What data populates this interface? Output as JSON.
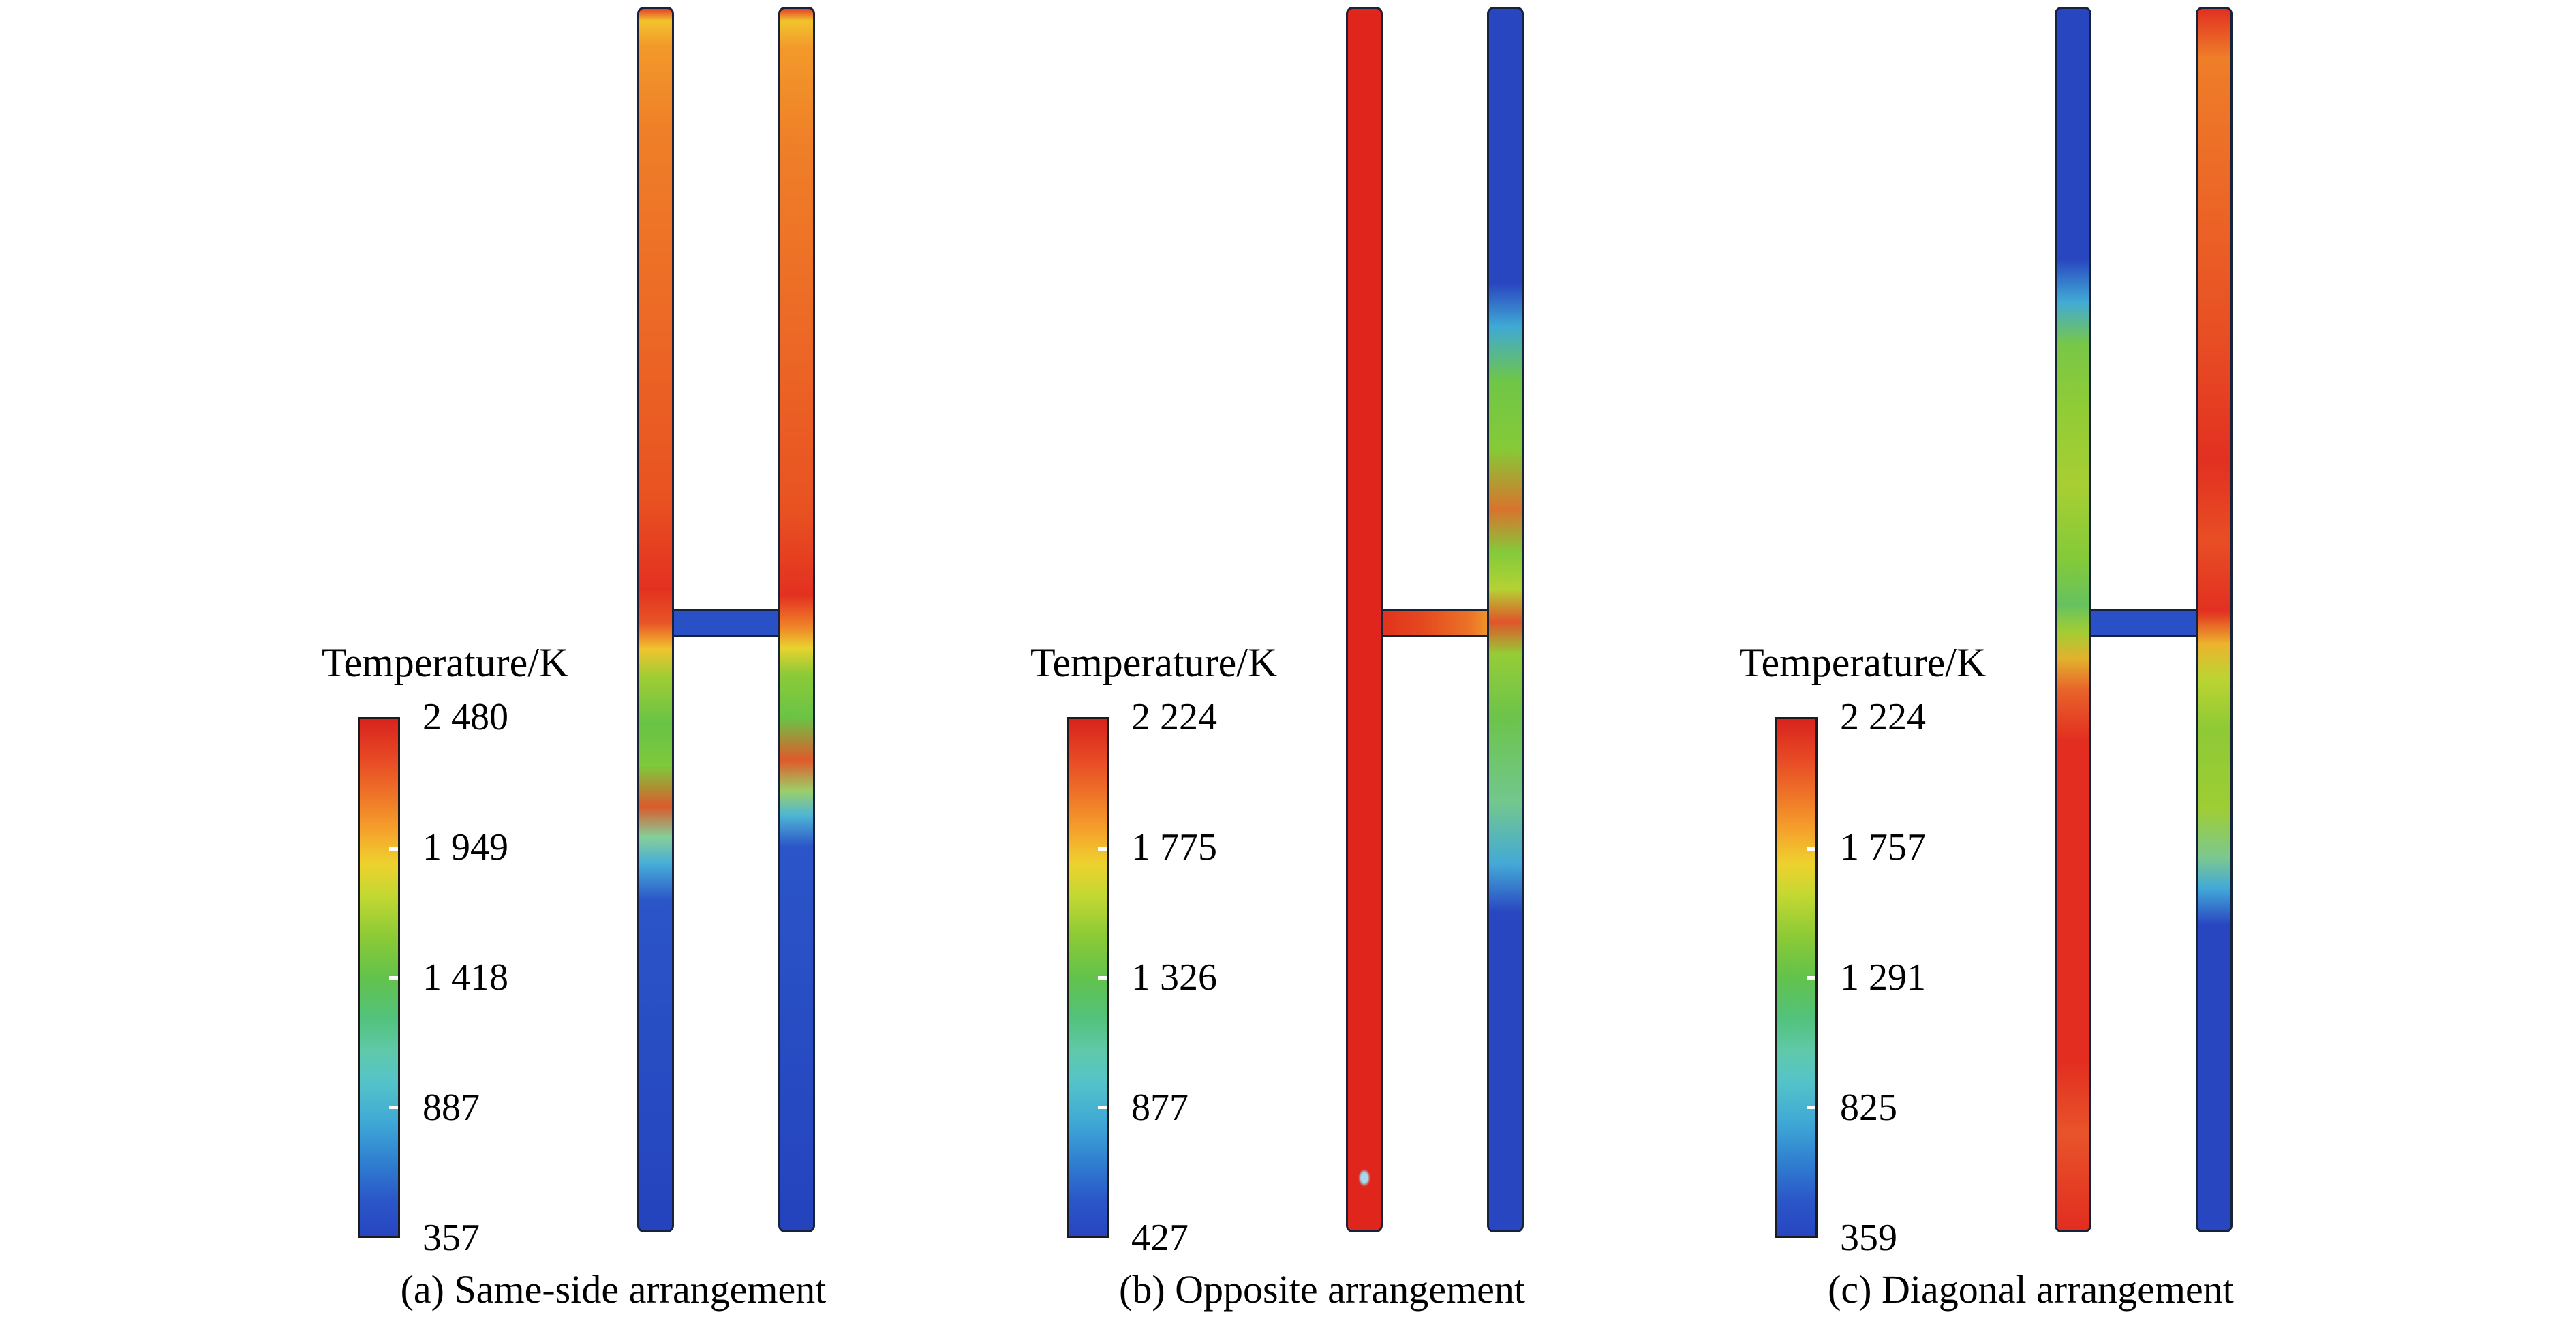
{
  "figure": {
    "panels": [
      {
        "caption": "(a) Same-side arrangement",
        "legend_title": "Temperature/K",
        "ticks": [
          "2 480",
          "1 949",
          "1 418",
          "887",
          "357"
        ]
      },
      {
        "caption": "(b) Opposite arrangement",
        "legend_title": "Temperature/K",
        "ticks": [
          "2 224",
          "1 775",
          "1 326",
          "877",
          "427"
        ]
      },
      {
        "caption": "(c) Diagonal arrangement",
        "legend_title": "Temperature/K",
        "ticks": [
          "2 224",
          "1 757",
          "1 291",
          "825",
          "359"
        ]
      }
    ]
  },
  "chart_data": [
    {
      "type": "heatmap",
      "title": "(a) Same-side arrangement",
      "colorbar_label": "Temperature/K",
      "colorbar_ticks": [
        2480,
        1949,
        1418,
        887,
        357
      ],
      "value_range_K": [
        357,
        2480
      ],
      "geometry": "two vertical channels joined by a short horizontal connector just below mid-height",
      "regions": {
        "left_channel": "red/orange (~2200-2480 K) from top down to connector, green mixing zone (~1400-1950 K) just below connector with small red pockets, cold blue (~357 K) over lower third",
        "right_channel": "red/orange from top down to connector, short green mixing zone below connector, cold blue lower third",
        "connector": "cold blue (~357 K)"
      },
      "legend_position": "left",
      "grid": false
    },
    {
      "type": "heatmap",
      "title": "(b) Opposite arrangement",
      "colorbar_label": "Temperature/K",
      "colorbar_ticks": [
        2224,
        1775,
        1326,
        877,
        427
      ],
      "value_range_K": [
        427,
        2224
      ],
      "geometry": "two vertical channels joined by a short horizontal connector just below mid-height",
      "regions": {
        "left_channel": "uniformly hot red (~2224 K) from top to bottom with a tiny cool spot near the bottom tip",
        "right_channel": "cold blue (~427 K) overall with a green/orange mixing plume along the inner wall above and below the connector",
        "connector": "red grading to orange/green toward the right channel"
      },
      "legend_position": "left",
      "grid": false
    },
    {
      "type": "heatmap",
      "title": "(c) Diagonal arrangement",
      "colorbar_label": "Temperature/K",
      "colorbar_ticks": [
        2224,
        1757,
        1291,
        825,
        359
      ],
      "value_range_K": [
        359,
        2224
      ],
      "geometry": "two vertical channels joined by a short horizontal connector just below mid-height",
      "regions": {
        "left_channel": "cold blue at top, green mixing zone (~1300-1760 K) above connector, hot red/orange (~2224 K) from connector to bottom",
        "right_channel": "hot orange/red from top down to connector, yellow-green mixing zone below connector, cold blue at bottom",
        "connector": "cold blue with cyan at right end"
      },
      "legend_position": "left",
      "grid": false
    }
  ],
  "colors": {
    "colormap_high_to_low": [
      "#e0251d",
      "#ee7e28",
      "#ecd22e",
      "#8cca36",
      "#62c27c",
      "#45b2d4",
      "#2946c1"
    ],
    "background": "#ffffff",
    "text": "#000000"
  }
}
